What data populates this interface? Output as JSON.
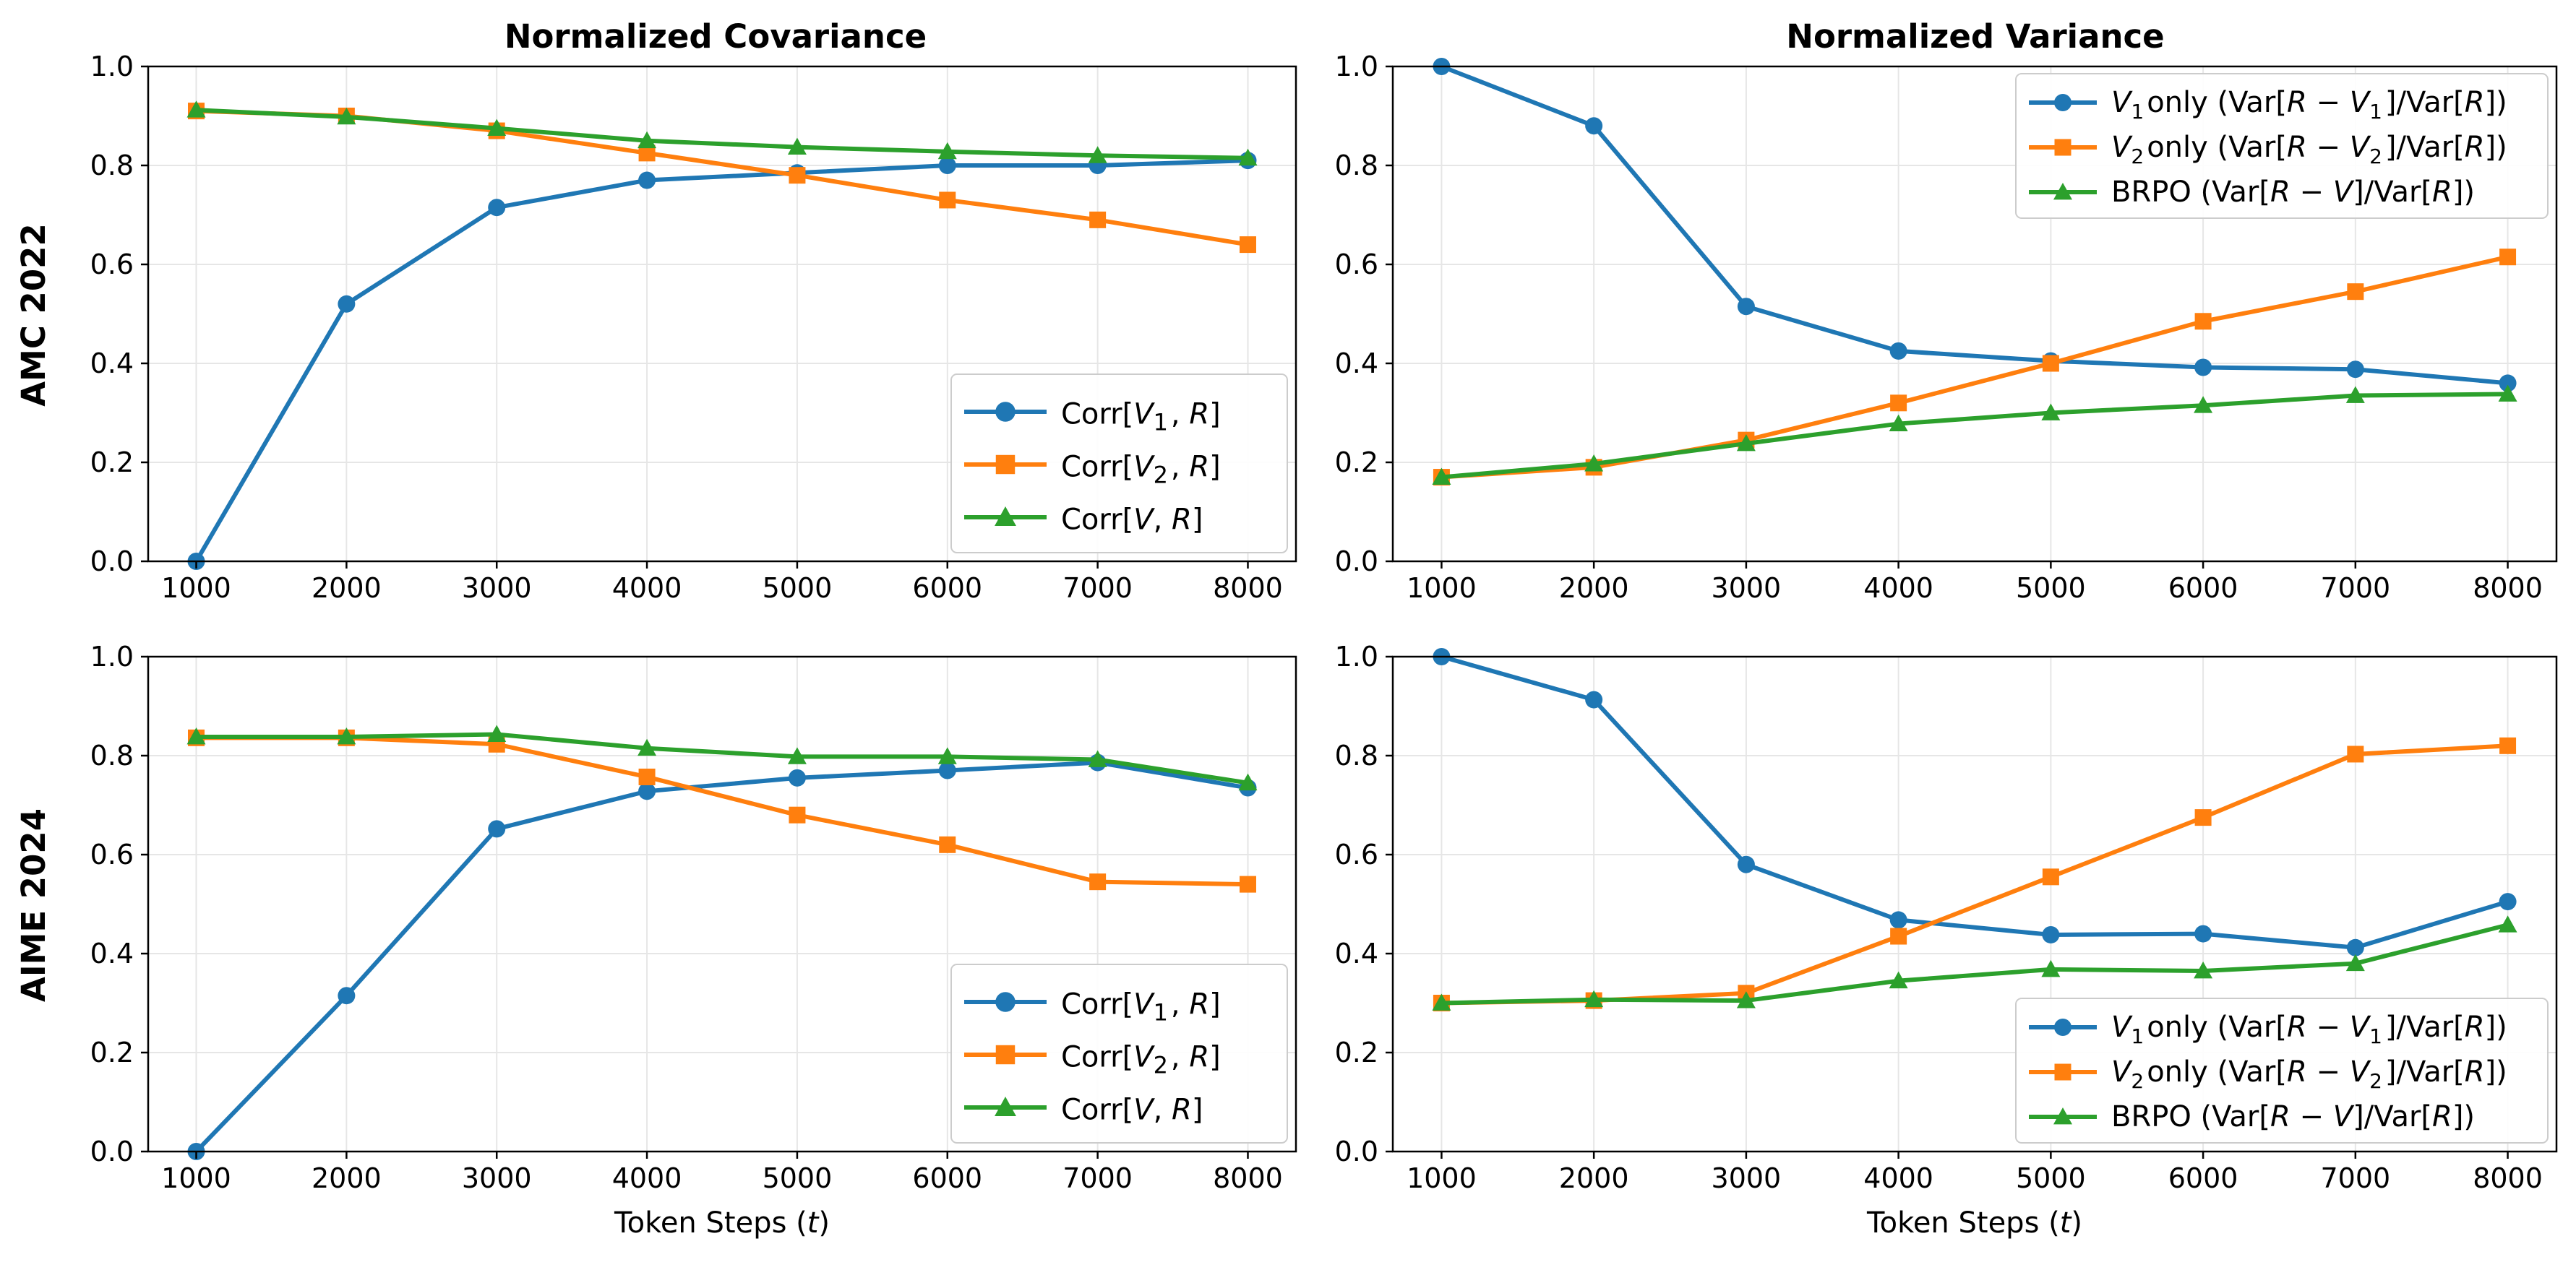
{
  "column_titles": [
    "Normalized Covariance",
    "Normalized Variance"
  ],
  "row_labels": [
    "AMC 2022",
    "AIME 2024"
  ],
  "xlabel": "Token Steps (t)",
  "chart_data": [
    {
      "type": "line",
      "title": "Normalized Covariance",
      "ylabel": "AMC 2022",
      "xlabel": "",
      "x": [
        1000,
        2000,
        3000,
        4000,
        5000,
        6000,
        7000,
        8000
      ],
      "xlim": [
        680,
        8320
      ],
      "ylim": [
        0,
        1
      ],
      "xticks": [
        "1000",
        "2000",
        "3000",
        "4000",
        "5000",
        "6000",
        "7000",
        "8000"
      ],
      "yticks": [
        "0.0",
        "0.2",
        "0.4",
        "0.6",
        "0.8",
        "1.0"
      ],
      "grid": true,
      "legend_position": "lower-right",
      "legend_size": "large",
      "series": [
        {
          "name": "Corr[V1, R]",
          "color": "#1f77b4",
          "marker": "circle",
          "values": [
            0.0,
            0.52,
            0.715,
            0.77,
            0.785,
            0.8,
            0.8,
            0.81
          ]
        },
        {
          "name": "Corr[V2, R]",
          "color": "#ff7f0e",
          "marker": "square",
          "values": [
            0.91,
            0.9,
            0.87,
            0.825,
            0.78,
            0.73,
            0.69,
            0.64
          ]
        },
        {
          "name": "Corr[V, R]",
          "color": "#2ca02c",
          "marker": "triangle",
          "values": [
            0.912,
            0.898,
            0.875,
            0.85,
            0.837,
            0.828,
            0.82,
            0.815
          ]
        }
      ]
    },
    {
      "type": "line",
      "title": "Normalized Variance",
      "ylabel": "",
      "xlabel": "",
      "x": [
        1000,
        2000,
        3000,
        4000,
        5000,
        6000,
        7000,
        8000
      ],
      "xlim": [
        680,
        8320
      ],
      "ylim": [
        0,
        1
      ],
      "xticks": [
        "1000",
        "2000",
        "3000",
        "4000",
        "5000",
        "6000",
        "7000",
        "8000"
      ],
      "yticks": [
        "0.0",
        "0.2",
        "0.4",
        "0.6",
        "0.8",
        "1.0"
      ],
      "grid": true,
      "legend_position": "top-right",
      "legend_size": "small",
      "series": [
        {
          "name": "V1only (Var[R − V1]/Var[R])",
          "color": "#1f77b4",
          "marker": "circle",
          "values": [
            1.0,
            0.88,
            0.515,
            0.425,
            0.405,
            0.392,
            0.388,
            0.36
          ]
        },
        {
          "name": "V2only (Var[R − V2]/Var[R])",
          "color": "#ff7f0e",
          "marker": "square",
          "values": [
            0.17,
            0.19,
            0.245,
            0.32,
            0.4,
            0.485,
            0.545,
            0.615
          ]
        },
        {
          "name": "BRPO (Var[R − V]/Var[R])",
          "color": "#2ca02c",
          "marker": "triangle",
          "values": [
            0.17,
            0.197,
            0.238,
            0.278,
            0.3,
            0.315,
            0.335,
            0.338
          ]
        }
      ]
    },
    {
      "type": "line",
      "title": "",
      "ylabel": "AIME 2024",
      "xlabel": "Token Steps (t)",
      "x": [
        1000,
        2000,
        3000,
        4000,
        5000,
        6000,
        7000,
        8000
      ],
      "xlim": [
        680,
        8320
      ],
      "ylim": [
        0,
        1
      ],
      "xticks": [
        "1000",
        "2000",
        "3000",
        "4000",
        "5000",
        "6000",
        "7000",
        "8000"
      ],
      "yticks": [
        "0.0",
        "0.2",
        "0.4",
        "0.6",
        "0.8",
        "1.0"
      ],
      "grid": true,
      "legend_position": "lower-right",
      "legend_size": "large",
      "series": [
        {
          "name": "Corr[V1, R]",
          "color": "#1f77b4",
          "marker": "circle",
          "values": [
            0.0,
            0.315,
            0.652,
            0.728,
            0.755,
            0.77,
            0.786,
            0.735
          ]
        },
        {
          "name": "Corr[V2, R]",
          "color": "#ff7f0e",
          "marker": "square",
          "values": [
            0.836,
            0.836,
            0.823,
            0.757,
            0.68,
            0.62,
            0.545,
            0.54
          ]
        },
        {
          "name": "Corr[V, R]",
          "color": "#2ca02c",
          "marker": "triangle",
          "values": [
            0.838,
            0.838,
            0.843,
            0.815,
            0.798,
            0.798,
            0.792,
            0.745
          ]
        }
      ]
    },
    {
      "type": "line",
      "title": "",
      "ylabel": "",
      "xlabel": "Token Steps (t)",
      "x": [
        1000,
        2000,
        3000,
        4000,
        5000,
        6000,
        7000,
        8000
      ],
      "xlim": [
        680,
        8320
      ],
      "ylim": [
        0,
        1
      ],
      "xticks": [
        "1000",
        "2000",
        "3000",
        "4000",
        "5000",
        "6000",
        "7000",
        "8000"
      ],
      "yticks": [
        "0.0",
        "0.2",
        "0.4",
        "0.6",
        "0.8",
        "1.0"
      ],
      "grid": true,
      "legend_position": "lower-right",
      "legend_size": "small",
      "series": [
        {
          "name": "V1only (Var[R − V1]/Var[R])",
          "color": "#1f77b4",
          "marker": "circle",
          "values": [
            1.0,
            0.913,
            0.58,
            0.468,
            0.438,
            0.44,
            0.412,
            0.505
          ]
        },
        {
          "name": "V2only (Var[R − V2]/Var[R])",
          "color": "#ff7f0e",
          "marker": "square",
          "values": [
            0.3,
            0.305,
            0.32,
            0.435,
            0.555,
            0.675,
            0.803,
            0.82
          ]
        },
        {
          "name": "BRPO (Var[R − V]/Var[R])",
          "color": "#2ca02c",
          "marker": "triangle",
          "values": [
            0.3,
            0.307,
            0.305,
            0.345,
            0.368,
            0.365,
            0.38,
            0.458
          ]
        }
      ]
    }
  ]
}
